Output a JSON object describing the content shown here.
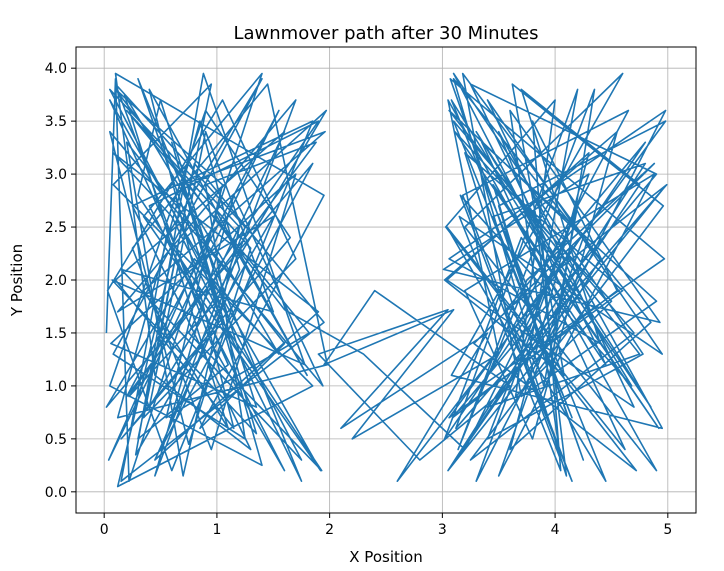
{
  "chart_data": {
    "type": "line",
    "title": "Lawnmover path after 30 Minutes",
    "xlabel": "X Position",
    "ylabel": "Y Position",
    "xlim": [
      -0.25,
      5.25
    ],
    "ylim": [
      -0.2,
      4.2
    ],
    "x_ticks": [
      0,
      1,
      2,
      3,
      4,
      5
    ],
    "x_tick_labels": [
      "0",
      "1",
      "2",
      "3",
      "4",
      "5"
    ],
    "y_ticks": [
      0.0,
      0.5,
      1.0,
      1.5,
      2.0,
      2.5,
      3.0,
      3.5,
      4.0
    ],
    "y_tick_labels": [
      "0.0",
      "0.5",
      "1.0",
      "1.5",
      "2.0",
      "2.5",
      "3.0",
      "3.5",
      "4.0"
    ],
    "grid": true,
    "line_color": "#1f77b4",
    "series": [
      {
        "x": [
          0.02,
          0.1,
          0.22,
          1.4,
          0.35,
          1.92,
          0.05,
          1.1,
          0.3,
          0.95,
          0.08,
          1.85,
          0.12,
          0.62,
          1.97,
          0.4,
          0.9,
          1.5,
          0.15,
          1.75,
          0.05,
          1.2,
          0.7,
          0.2,
          1.6,
          0.85,
          1.95,
          0.1,
          0.45,
          1.3,
          0.25,
          1.85,
          0.6,
          0.03,
          1.05,
          1.7,
          0.35,
          0.8,
          1.95,
          0.15,
          0.55,
          1.4,
          0.08,
          1.25,
          0.9,
          1.88,
          0.2,
          0.65,
          1.55,
          0.04,
          1.0,
          1.8,
          0.4,
          1.15,
          0.1,
          1.6,
          0.75,
          1.93,
          0.3,
          0.5,
          1.35,
          0.06,
          1.7,
          0.95,
          0.25,
          1.45,
          1.98,
          0.12,
          0.85,
          1.2,
          0.45,
          1.9,
          0.08,
          0.6,
          1.75,
          0.3,
          1.05,
          0.15,
          1.65,
          0.9,
          0.05,
          1.4,
          0.7,
          1.96,
          0.35,
          1.1,
          0.18,
          1.55,
          0.8,
          0.02,
          1.85,
          0.5,
          1.25,
          0.1,
          0.95,
          1.6,
          0.4,
          1.9,
          0.22,
          1.0,
          0.6,
          1.35,
          0.07,
          1.78,
          0.88,
          0.28,
          1.5,
          0.12,
          1.7,
          0.45,
          1.15,
          1.94,
          0.05,
          0.75,
          1.3,
          0.2,
          1.82,
          0.55,
          1.05,
          0.1,
          1.6,
          2.3,
          3.2,
          3.9,
          2.6,
          3.4,
          2.1,
          3.05,
          1.9,
          2.8,
          3.6,
          2.4,
          1.95,
          3.1,
          2.2,
          3.5,
          3.05,
          4.9,
          3.2,
          4.6,
          3.08,
          4.95,
          3.5,
          4.1,
          3.12,
          4.75,
          3.7,
          4.4,
          3.06,
          4.98,
          3.3,
          4.2,
          3.9,
          3.1,
          4.85,
          3.6,
          4.3,
          3.04,
          4.7,
          3.4,
          4.95,
          3.15,
          4.05,
          3.8,
          4.55,
          3.09,
          4.9,
          3.25,
          4.45,
          3.7,
          3.02,
          4.8,
          3.55,
          4.15,
          3.18,
          4.65,
          3.35,
          4.97,
          3.07,
          4.25,
          3.85,
          3.45,
          4.92,
          3.11,
          4.5,
          3.65,
          4.0,
          3.03,
          4.72,
          3.28,
          4.88,
          3.75,
          3.14,
          4.35,
          3.95,
          3.5,
          4.98,
          3.06,
          4.6,
          3.2,
          4.1,
          3.85,
          3.1,
          4.78,
          3.4,
          4.3,
          3.01,
          4.93,
          3.6,
          4.05,
          3.16,
          4.68,
          3.3,
          4.85,
          3.9,
          3.08,
          4.45,
          3.55,
          4.99,
          3.12,
          4.2,
          3.75,
          3.04,
          4.62,
          3.35,
          4.9,
          3.7,
          3.18,
          4.4,
          3.95,
          3.05,
          4.8,
          3.45,
          4.15,
          3.1,
          4.7,
          3.25,
          4.96,
          3.62,
          4.08,
          3.02,
          4.55,
          3.8,
          3.2,
          4.88,
          3.5,
          4.25,
          3.06,
          4.75,
          3.4,
          4.95
        ],
        "y": [
          1.5,
          3.9,
          0.1,
          3.95,
          2.6,
          0.2,
          3.7,
          1.2,
          0.5,
          3.85,
          2.9,
          1.0,
          0.05,
          2.3,
          3.6,
          0.8,
          3.4,
          1.7,
          2.1,
          0.3,
          3.8,
          2.5,
          0.15,
          3.3,
          1.4,
          0.6,
          2.8,
          3.95,
          1.1,
          0.4,
          2.7,
          3.5,
          0.2,
          1.9,
          3.7,
          2.2,
          0.7,
          3.1,
          1.6,
          0.1,
          2.4,
          3.9,
          1.3,
          0.5,
          2.9,
          3.3,
          0.9,
          1.8,
          3.6,
          0.3,
          2.6,
          1.1,
          3.8,
          0.6,
          2.0,
          3.4,
          1.5,
          0.2,
          2.8,
          3.7,
          0.8,
          1.4,
          3.0,
          0.4,
          2.3,
          3.85,
          1.2,
          0.7,
          3.5,
          2.1,
          0.3,
          1.7,
          3.2,
          2.6,
          0.1,
          3.9,
          1.6,
          0.5,
          2.4,
          3.6,
          1.0,
          0.25,
          2.9,
          3.4,
          1.9,
          0.6,
          3.75,
          1.3,
          2.2,
          0.8,
          3.1,
          0.4,
          2.5,
          3.85,
          1.4,
          0.2,
          2.7,
          3.5,
          0.9,
          1.8,
          3.3,
          0.55,
          2.0,
          1.2,
          3.95,
          0.35,
          2.6,
          1.7,
          3.7,
          0.15,
          2.8,
          1.0,
          3.4,
          0.45,
          2.3,
          3.6,
          1.5,
          0.7,
          2.9,
          3.8,
          1.72,
          1.3,
          0.4,
          1.9,
          0.1,
          1.5,
          0.6,
          1.72,
          1.3,
          0.3,
          1.0,
          1.9,
          1.2,
          1.72,
          0.5,
          1.3,
          3.7,
          0.2,
          2.5,
          3.95,
          1.1,
          0.6,
          3.4,
          1.8,
          0.3,
          2.9,
          3.8,
          1.4,
          2.2,
          3.6,
          0.1,
          2.7,
          1.0,
          3.9,
          1.6,
          0.4,
          3.2,
          2.0,
          0.8,
          3.7,
          1.3,
          2.6,
          0.2,
          3.5,
          1.9,
          0.7,
          3.0,
          3.85,
          1.2,
          2.4,
          0.5,
          3.3,
          1.7,
          0.1,
          2.8,
          3.6,
          1.0,
          2.2,
          3.9,
          0.3,
          1.5,
          2.9,
          0.6,
          3.4,
          1.8,
          0.9,
          3.7,
          2.5,
          0.2,
          1.4,
          3.1,
          2.0,
          0.4,
          3.8,
          1.1,
          2.7,
          3.5,
          0.7,
          1.9,
          3.2,
          0.15,
          2.4,
          3.95,
          1.3,
          0.5,
          3.0,
          2.1,
          1.6,
          3.6,
          0.3,
          2.8,
          1.0,
          3.4,
          0.8,
          2.3,
          3.7,
          0.1,
          1.7,
          2.9,
          0.6,
          3.8,
          1.2,
          2.5,
          0.4,
          3.3,
          1.8,
          0.9,
          3.95,
          2.2,
          1.4,
          0.2,
          3.1,
          2.6,
          0.7,
          3.5,
          1.5,
          0.3,
          2.7,
          3.85,
          1.1,
          2.0,
          3.4,
          0.5,
          1.9,
          3.0,
          0.15,
          2.4,
          3.6,
          1.3,
          0.8,
          2.85
        ]
      }
    ]
  }
}
